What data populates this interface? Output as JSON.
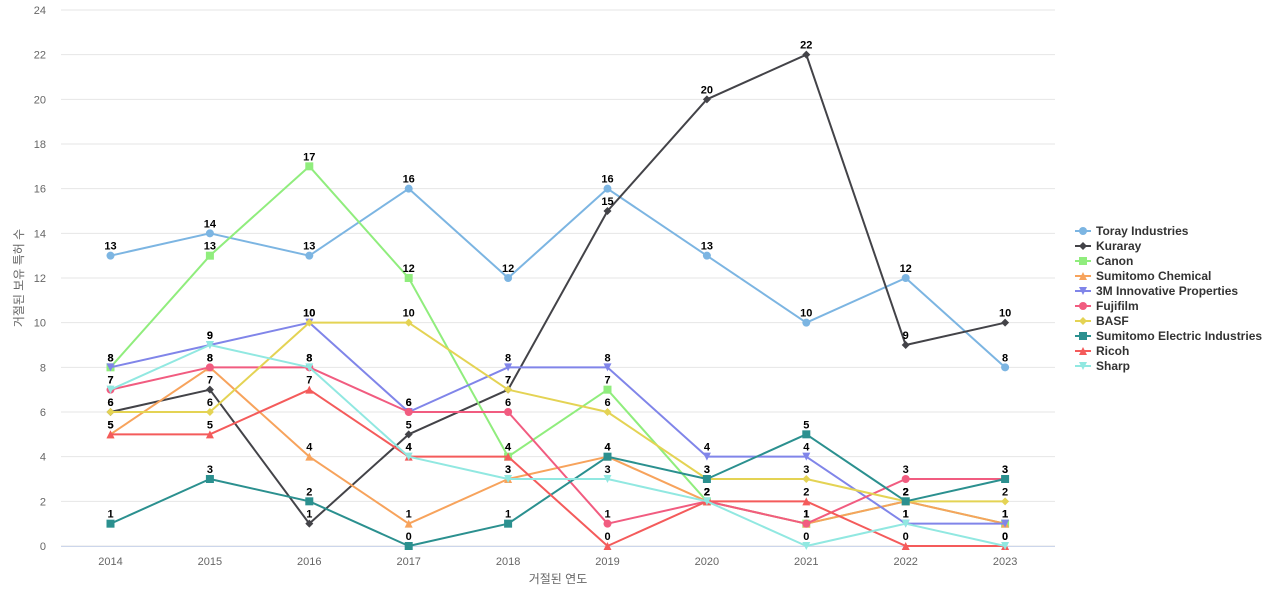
{
  "chart_data": {
    "type": "line",
    "xlabel": "거절된 연도",
    "ylabel": "거절된 보유 특허 수",
    "x": [
      "2014",
      "2015",
      "2016",
      "2017",
      "2018",
      "2019",
      "2020",
      "2021",
      "2022",
      "2023"
    ],
    "ylim": [
      0,
      24
    ],
    "yticks": [
      "0",
      "2",
      "4",
      "6",
      "8",
      "10",
      "12",
      "14",
      "16",
      "18",
      "20",
      "22",
      "24"
    ],
    "grid": true,
    "legend_position": "right",
    "series": [
      {
        "name": "Toray Industries",
        "color": "#7cb5e2",
        "marker": "circle",
        "values": [
          13,
          14,
          13,
          16,
          12,
          16,
          13,
          10,
          12,
          8
        ]
      },
      {
        "name": "Kuraray",
        "color": "#434348",
        "marker": "diamond",
        "values": [
          6,
          7,
          1,
          5,
          7,
          15,
          20,
          22,
          9,
          10
        ]
      },
      {
        "name": "Canon",
        "color": "#90ed7d",
        "marker": "square",
        "values": [
          8,
          13,
          17,
          12,
          4,
          7,
          2,
          1,
          2,
          1
        ]
      },
      {
        "name": "Sumitomo Chemical",
        "color": "#f7a35c",
        "marker": "triangle",
        "values": [
          5,
          8,
          4,
          1,
          3,
          4,
          2,
          1,
          2,
          1
        ]
      },
      {
        "name": "3M Innovative Properties",
        "color": "#8085e9",
        "marker": "triangle-down",
        "values": [
          8,
          9,
          10,
          6,
          8,
          8,
          4,
          4,
          1,
          1
        ]
      },
      {
        "name": "Fujifilm",
        "color": "#f15c80",
        "marker": "circle",
        "values": [
          7,
          8,
          8,
          6,
          6,
          1,
          2,
          1,
          3,
          3
        ]
      },
      {
        "name": "BASF",
        "color": "#e4d354",
        "marker": "diamond",
        "values": [
          6,
          6,
          10,
          10,
          7,
          6,
          3,
          3,
          2,
          2
        ]
      },
      {
        "name": "Sumitomo Electric Industries",
        "color": "#2b908f",
        "marker": "square",
        "values": [
          1,
          3,
          2,
          0,
          1,
          4,
          3,
          5,
          2,
          3
        ]
      },
      {
        "name": "Ricoh",
        "color": "#f45b5b",
        "marker": "triangle",
        "values": [
          5,
          5,
          7,
          4,
          4,
          0,
          2,
          2,
          0,
          0
        ]
      },
      {
        "name": "Sharp",
        "color": "#91e8e1",
        "marker": "triangle-down",
        "values": [
          7,
          9,
          8,
          4,
          3,
          3,
          2,
          0,
          1,
          0
        ]
      }
    ]
  }
}
